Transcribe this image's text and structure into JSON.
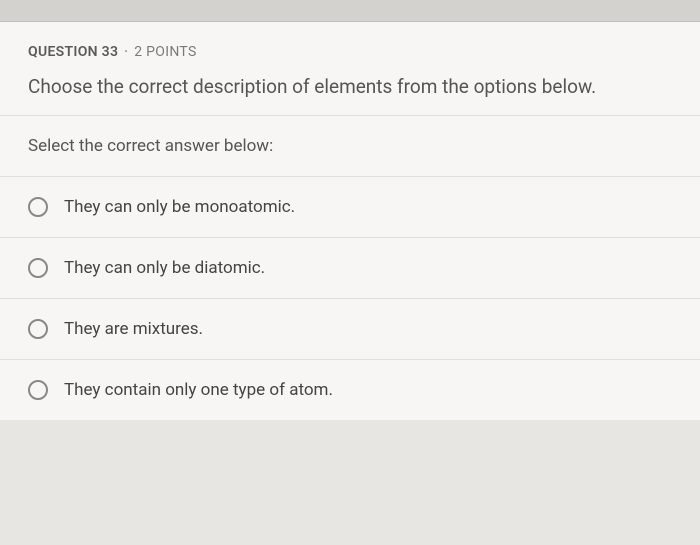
{
  "question": {
    "number_label": "QUESTION 33",
    "points_label": "2 POINTS",
    "text": "Choose the correct description of elements from the options below.",
    "prompt": "Select the correct answer below:"
  },
  "options": [
    {
      "text": "They can only be monoatomic."
    },
    {
      "text": "They can only be diatomic."
    },
    {
      "text": "They are mixtures."
    },
    {
      "text": "They contain only one type of atom."
    }
  ],
  "colors": {
    "page_background": "#e8e6e3",
    "container_background": "#f7f6f4",
    "border": "#e0ded9",
    "radio_border": "#888888",
    "text_primary": "#555555",
    "text_header": "#5a5a5a"
  }
}
